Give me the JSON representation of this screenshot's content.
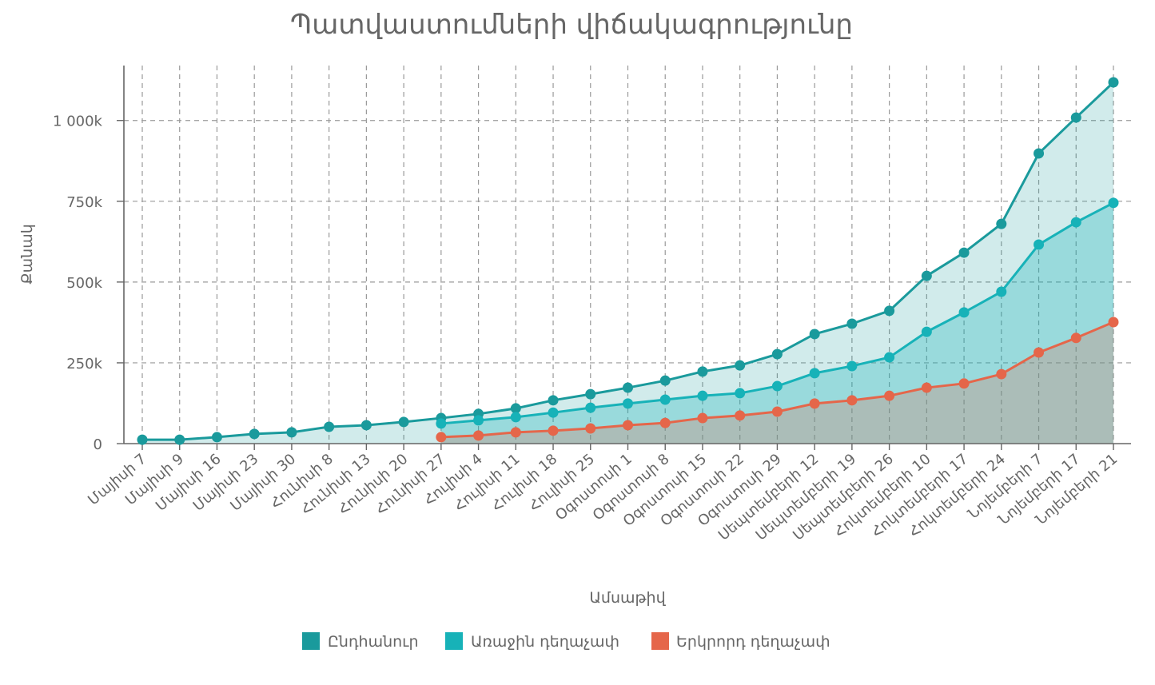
{
  "chart_data": {
    "type": "area",
    "title": "Պատվաստումների վիճակագրությունը",
    "xlabel": "Ամսաթիվ",
    "ylabel": "Քանակ",
    "categories": [
      "Մայիսի 7",
      "Մայիսի 9",
      "Մայիսի 16",
      "Մայիսի 23",
      "Մայիսի 30",
      "Հունիսի 8",
      "Հունիսի 13",
      "Հունիսի 20",
      "Հունիսի 27",
      "Հուլիսի 4",
      "Հուլիսի 11",
      "Հուլիսի 18",
      "Հուլիսի 25",
      "Օգոստոսի 1",
      "Օգոստոսի 8",
      "Օգոստոսի 15",
      "Օգոստոսի 22",
      "Օգոստոսի 29",
      "Սեպտեմբերի 12",
      "Սեպտեմբերի 19",
      "Սեպտեմբերի 26",
      "Հոկտեմբերի 10",
      "Հոկտեմբերի 17",
      "Հոկտեմբերի 24",
      "Նոյեմբերի 7",
      "Նոյեմբերի 17",
      "Նոյեմբերի 21"
    ],
    "ylim": [
      0,
      1170000
    ],
    "yticks": [
      0,
      250000,
      500000,
      750000,
      1000000
    ],
    "ytick_labels": [
      "0",
      "250k",
      "500k",
      "750k",
      "1 000k"
    ],
    "grid": true,
    "legend_position": "bottom",
    "series": [
      {
        "name": "Ընդհանուր",
        "color": "#1a9a9c",
        "values": [
          12000,
          12000,
          20000,
          30000,
          35000,
          52000,
          57000,
          67000,
          79000,
          92000,
          109000,
          134000,
          153000,
          173000,
          195000,
          223000,
          242000,
          277000,
          339000,
          371000,
          411000,
          519000,
          591000,
          680000,
          898000,
          1009000,
          1118000
        ]
      },
      {
        "name": "Առաջին դեղաչափ",
        "color": "#17b2b8",
        "values": [
          null,
          null,
          null,
          null,
          null,
          null,
          null,
          null,
          62000,
          72000,
          82000,
          96000,
          111000,
          124000,
          136000,
          148000,
          156000,
          178000,
          218000,
          240000,
          267000,
          346000,
          406000,
          470000,
          616000,
          685000,
          745000
        ]
      },
      {
        "name": "Երկրորդ դեղաչափ",
        "color": "#e5664a",
        "values": [
          null,
          null,
          null,
          null,
          null,
          null,
          null,
          null,
          20000,
          25000,
          35000,
          40000,
          47000,
          57000,
          64000,
          79000,
          87000,
          99000,
          124000,
          134000,
          148000,
          173000,
          186000,
          215000,
          282000,
          327000,
          376000
        ]
      }
    ]
  }
}
